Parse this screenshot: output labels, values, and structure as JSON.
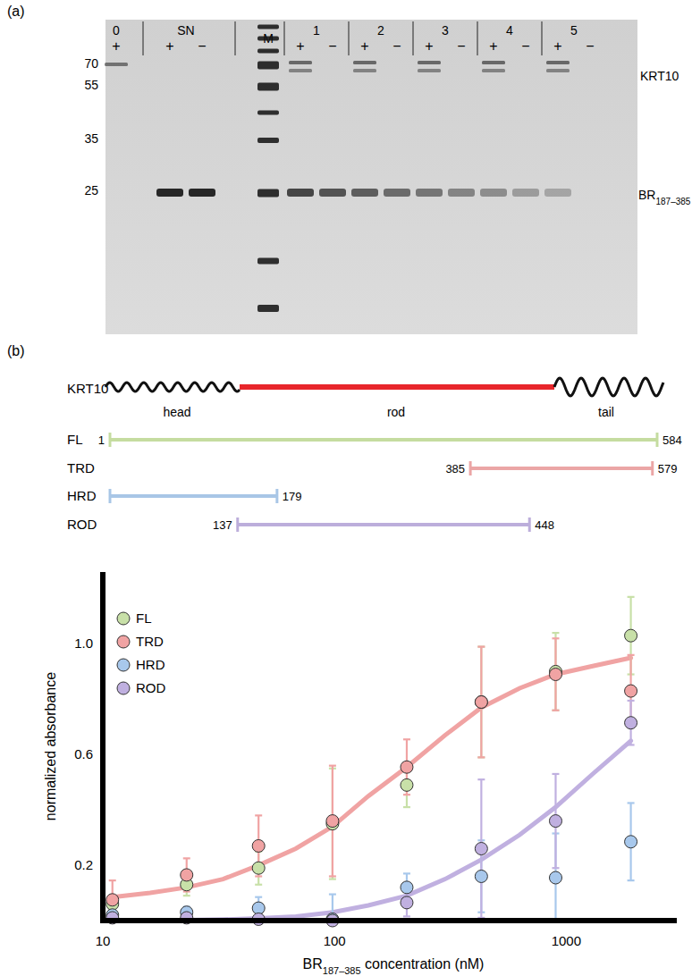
{
  "gel": {
    "label": "(a)",
    "mw_labels": [
      70,
      55,
      35,
      25
    ],
    "band_labels": [
      {
        "text": "KRT10"
      },
      {
        "text": "BR",
        "subscript": "187–385"
      }
    ],
    "groups": [
      {
        "label": "0",
        "lanes": [
          {
            "sign": "+",
            "bands": [
              "KRT10"
            ]
          }
        ]
      },
      {
        "label": "SN",
        "lanes": [
          {
            "sign": "+",
            "bands": [
              "BR"
            ]
          },
          {
            "sign": "−",
            "bands": [
              "BR"
            ]
          }
        ]
      },
      {
        "label": "M",
        "lanes": [
          {
            "marker": true
          }
        ]
      },
      {
        "label": "1",
        "lanes": [
          {
            "sign": "+",
            "bands": [
              "KRT10",
              "BR"
            ]
          },
          {
            "sign": "−",
            "bands": [
              "BR"
            ]
          }
        ]
      },
      {
        "label": "2",
        "lanes": [
          {
            "sign": "+",
            "bands": [
              "KRT10",
              "BR"
            ]
          },
          {
            "sign": "−",
            "bands": [
              "BR"
            ]
          }
        ]
      },
      {
        "label": "3",
        "lanes": [
          {
            "sign": "+",
            "bands": [
              "KRT10",
              "BR"
            ]
          },
          {
            "sign": "−",
            "bands": [
              "BR"
            ]
          }
        ]
      },
      {
        "label": "4",
        "lanes": [
          {
            "sign": "+",
            "bands": [
              "KRT10",
              "BR"
            ]
          },
          {
            "sign": "−",
            "bands": [
              "BR"
            ]
          }
        ]
      },
      {
        "label": "5",
        "lanes": [
          {
            "sign": "+",
            "bands": [
              "KRT10",
              "BR"
            ]
          },
          {
            "sign": "−",
            "bands": []
          }
        ]
      }
    ]
  },
  "diagram": {
    "label": "(b)",
    "protein": "KRT10",
    "domains": [
      "head",
      "rod",
      "tail"
    ],
    "constructs": [
      {
        "name": "FL",
        "start": 1,
        "end": 584,
        "color": "#c5dca0",
        "show_start": true
      },
      {
        "name": "TRD",
        "start": 385,
        "end": 579,
        "color": "#eba6a6",
        "show_start": true
      },
      {
        "name": "HRD",
        "start": 1,
        "end": 179,
        "color": "#a8c6e6",
        "show_start": false
      },
      {
        "name": "ROD",
        "start": 137,
        "end": 448,
        "color": "#bcaedb",
        "show_start": true
      }
    ]
  },
  "chart_data": {
    "type": "scatter",
    "xlabel": {
      "text": "BR",
      "subscript": "187–385",
      "suffix": " concentration (nM)"
    },
    "ylabel": "normalized absorbance",
    "log": "x",
    "grid": false,
    "legend": "upper left",
    "marker": "circle",
    "xlim": [
      10,
      3000
    ],
    "xticks": [
      10,
      100,
      1000
    ],
    "ylim": [
      0,
      1.26
    ],
    "yticks": [
      0.2,
      0.6,
      {
        "value": 1,
        "label": "1.0"
      }
    ],
    "x": [
      11,
      23,
      47,
      98,
      205,
      430,
      900,
      1900
    ],
    "series": [
      {
        "name": "FL",
        "color": "#c8e0a8",
        "values": [
          0.06,
          0.13,
          0.19,
          0.35,
          0.49,
          0.79,
          0.9,
          1.03
        ],
        "errors": [
          0.03,
          0.04,
          0.06,
          0.2,
          0.08,
          0.2,
          0.14,
          0.14
        ]
      },
      {
        "name": "TRD",
        "color": "#f0a3a3",
        "values": [
          0.075,
          0.165,
          0.27,
          0.36,
          0.555,
          0.79,
          0.89,
          0.83
        ],
        "errors": [
          0.07,
          0.06,
          0.11,
          0.2,
          0.1,
          0.2,
          0.13,
          0.13
        ],
        "fit": {
          "x": [
            11,
            16,
            23,
            33,
            47,
            68,
            98,
            140,
            205,
            300,
            430,
            630,
            900,
            1300,
            1900
          ],
          "values": [
            0.085,
            0.1,
            0.12,
            0.15,
            0.2,
            0.26,
            0.34,
            0.45,
            0.555,
            0.67,
            0.77,
            0.84,
            0.89,
            0.92,
            0.95
          ]
        }
      },
      {
        "name": "HRD",
        "color": "#a8c8ec",
        "values": [
          0.02,
          0.03,
          0.045,
          0.005,
          0.12,
          0.16,
          0.155,
          0.285
        ],
        "errors": [
          0.02,
          0.02,
          0.04,
          0.09,
          0.05,
          0.13,
          0.16,
          0.14
        ]
      },
      {
        "name": "ROD",
        "color": "#c0b0e0",
        "values": [
          0.01,
          0.01,
          0.005,
          0.0,
          0.065,
          0.26,
          0.36,
          0.715
        ],
        "errors": [
          0.01,
          0.01,
          0.01,
          0.01,
          0.05,
          0.25,
          0.17,
          0.08
        ],
        "fit": {
          "x": [
            11,
            16,
            23,
            33,
            47,
            68,
            98,
            140,
            205,
            300,
            430,
            630,
            900,
            1300,
            1900
          ],
          "values": [
            0.0,
            0.001,
            0.002,
            0.004,
            0.008,
            0.015,
            0.03,
            0.055,
            0.09,
            0.15,
            0.22,
            0.31,
            0.41,
            0.53,
            0.65
          ]
        }
      }
    ]
  }
}
